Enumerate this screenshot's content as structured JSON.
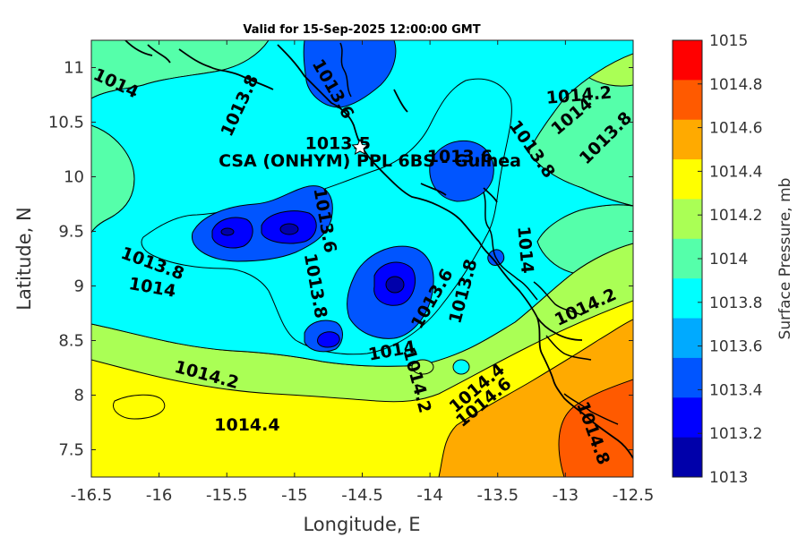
{
  "title": "Valid for 15-Sep-2025 12:00:00 GMT",
  "xlabel": "Longitude, E",
  "ylabel": "Latitude, N",
  "colorbar_label": "Surface Pressure, mb",
  "x_ticks": [
    "-16.5",
    "-16",
    "-15.5",
    "-15",
    "-14.5",
    "-14",
    "-13.5",
    "-13",
    "-12.5"
  ],
  "y_ticks": [
    "7.5",
    "8",
    "8.5",
    "9",
    "9.5",
    "10",
    "10.5",
    "11"
  ],
  "colorbar_ticks": [
    "1015",
    "1014.8",
    "1014.6",
    "1014.4",
    "1014.2",
    "1014",
    "1013.8",
    "1013.6",
    "1013.4",
    "1013.2",
    "1013"
  ],
  "colorbar_colors": [
    "#ff0000",
    "#ff5a00",
    "#ffaa00",
    "#ffff00",
    "#aaff55",
    "#55ffaa",
    "#00ffff",
    "#00aaff",
    "#0055ff",
    "#0000ff",
    "#0000aa"
  ],
  "site_label": "CSA (ONHYM) PPL 6BS - Guinea",
  "contour_labels": [
    {
      "text": "1014",
      "lon": -16.32,
      "lat": 10.85,
      "rot": 25
    },
    {
      "text": "1013.8",
      "lon": -15.4,
      "lat": 10.65,
      "rot": -65
    },
    {
      "text": "1013.6",
      "lon": -14.72,
      "lat": 10.8,
      "rot": 60
    },
    {
      "text": "1013.5",
      "lon": -14.68,
      "lat": 10.3,
      "rot": 0
    },
    {
      "text": "1013.6",
      "lon": -13.78,
      "lat": 10.18,
      "rot": 0
    },
    {
      "text": "1013.8",
      "lon": -13.25,
      "lat": 10.25,
      "rot": 55
    },
    {
      "text": "1014.2",
      "lon": -12.9,
      "lat": 10.74,
      "rot": -5
    },
    {
      "text": "1014",
      "lon": -12.95,
      "lat": 10.55,
      "rot": -40
    },
    {
      "text": "1013.8",
      "lon": -12.7,
      "lat": 10.35,
      "rot": -45
    },
    {
      "text": "1013.6",
      "lon": -14.78,
      "lat": 9.6,
      "rot": 80
    },
    {
      "text": "1013.8",
      "lon": -16.05,
      "lat": 9.2,
      "rot": 20
    },
    {
      "text": "1014",
      "lon": -16.05,
      "lat": 8.98,
      "rot": 10
    },
    {
      "text": "1013.8",
      "lon": -14.85,
      "lat": 9.0,
      "rot": 80
    },
    {
      "text": "1013.6",
      "lon": -13.98,
      "lat": 8.88,
      "rot": -60
    },
    {
      "text": "1013.8",
      "lon": -13.75,
      "lat": 8.95,
      "rot": -75
    },
    {
      "text": "1014",
      "lon": -13.3,
      "lat": 9.33,
      "rot": 85
    },
    {
      "text": "1014.2",
      "lon": -12.85,
      "lat": 8.8,
      "rot": -25
    },
    {
      "text": "1014",
      "lon": -14.28,
      "lat": 8.4,
      "rot": -10
    },
    {
      "text": "1014.2",
      "lon": -14.1,
      "lat": 8.13,
      "rot": 75
    },
    {
      "text": "1014.2",
      "lon": -15.65,
      "lat": 8.18,
      "rot": 15
    },
    {
      "text": "1014.4",
      "lon": -15.35,
      "lat": 7.72,
      "rot": 0
    },
    {
      "text": "1014.4",
      "lon": -13.65,
      "lat": 8.06,
      "rot": -40
    },
    {
      "text": "1014.6",
      "lon": -13.6,
      "lat": 7.93,
      "rot": -40
    },
    {
      "text": "1014.8",
      "lon": -12.8,
      "lat": 7.65,
      "rot": 70
    }
  ]
}
